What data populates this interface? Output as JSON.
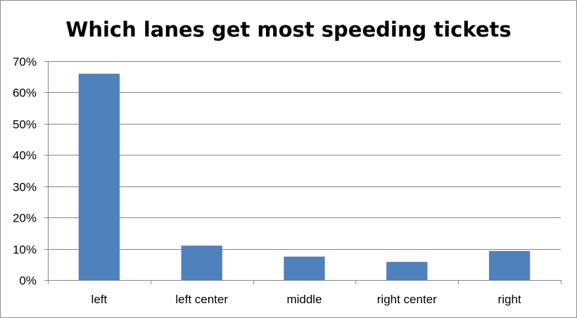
{
  "chart_data": {
    "type": "bar",
    "title": "Which lanes get most speeding tickets",
    "categories": [
      "left",
      "left center",
      "middle",
      "right center",
      "right"
    ],
    "series": [
      {
        "values": [
          0.66,
          0.11,
          0.075,
          0.058,
          0.093
        ]
      }
    ],
    "ylim": [
      0,
      0.7
    ],
    "yticks": [
      0,
      0.1,
      0.2,
      0.3,
      0.4,
      0.5,
      0.6,
      0.7
    ],
    "ytick_labels": [
      "0%",
      "10%",
      "20%",
      "30%",
      "40%",
      "50%",
      "60%",
      "70%"
    ],
    "xlabel": "",
    "ylabel": "",
    "grid": true,
    "legend": "none",
    "colors": {
      "bar": "#4f81bd",
      "grid": "#868686",
      "axis": "#868686"
    }
  }
}
